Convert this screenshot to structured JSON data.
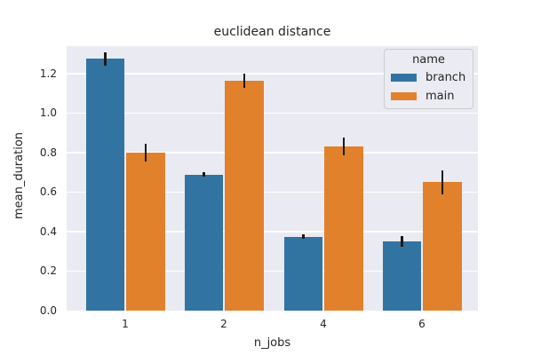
{
  "chart_data": {
    "type": "bar",
    "title": "euclidean distance",
    "xlabel": "n_jobs",
    "ylabel": "mean_duration",
    "categories": [
      "1",
      "2",
      "4",
      "6"
    ],
    "series": [
      {
        "name": "branch",
        "color": "#3274a1",
        "values": [
          1.275,
          0.69,
          0.375,
          0.35
        ],
        "errors": [
          0.035,
          0.012,
          0.013,
          0.028
        ]
      },
      {
        "name": "main",
        "color": "#e1812c",
        "values": [
          0.8,
          1.165,
          0.83,
          0.65
        ],
        "errors": [
          0.045,
          0.035,
          0.045,
          0.06
        ]
      }
    ],
    "ylim": [
      0,
      1.34
    ],
    "yticks": [
      "0.0",
      "0.2",
      "0.4",
      "0.6",
      "0.8",
      "1.0",
      "1.2"
    ],
    "grid": true,
    "plot_bg": "#eaeaf2",
    "errorbar_color": "#1a1a1a",
    "legend_position": "upper right"
  },
  "legend": {
    "title": "name"
  }
}
